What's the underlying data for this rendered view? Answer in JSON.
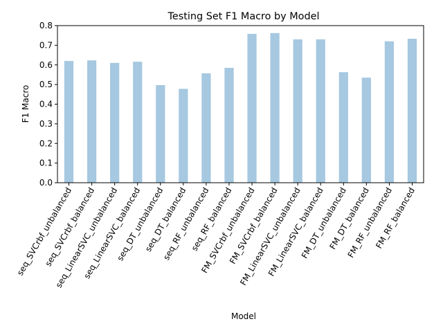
{
  "chart_data": {
    "type": "bar",
    "title": "Testing Set F1 Macro by Model",
    "xlabel": "Model",
    "ylabel": "F1 Macro",
    "ylim": [
      0,
      0.8
    ],
    "yticks": [
      "0.0",
      "0.1",
      "0.2",
      "0.3",
      "0.4",
      "0.5",
      "0.6",
      "0.7",
      "0.8"
    ],
    "grid": false,
    "bar_color": "#a6c8e0",
    "categories": [
      "seq_SVCrbf_unbalanced",
      "seq_SVCrbf_balanced",
      "seq_LinearSVC_unbalanced",
      "seq_LinearSVC_balanced",
      "seq_DT_unbalanced",
      "seq_DT_balanced",
      "seq_RF_unbalanced",
      "seq_RF_balanced",
      "FM_SVCrbf_unbalanced",
      "FM_SVCrbf_balanced",
      "FM_LinearSVC_unbalanced",
      "FM_LinearSVC_balanced",
      "FM_DT_unbalanced",
      "FM_DT_balanced",
      "FM_RF_unbalanced",
      "FM_RF_balanced"
    ],
    "values": [
      0.62,
      0.623,
      0.61,
      0.616,
      0.497,
      0.478,
      0.557,
      0.585,
      0.758,
      0.762,
      0.73,
      0.73,
      0.563,
      0.535,
      0.72,
      0.733
    ]
  }
}
